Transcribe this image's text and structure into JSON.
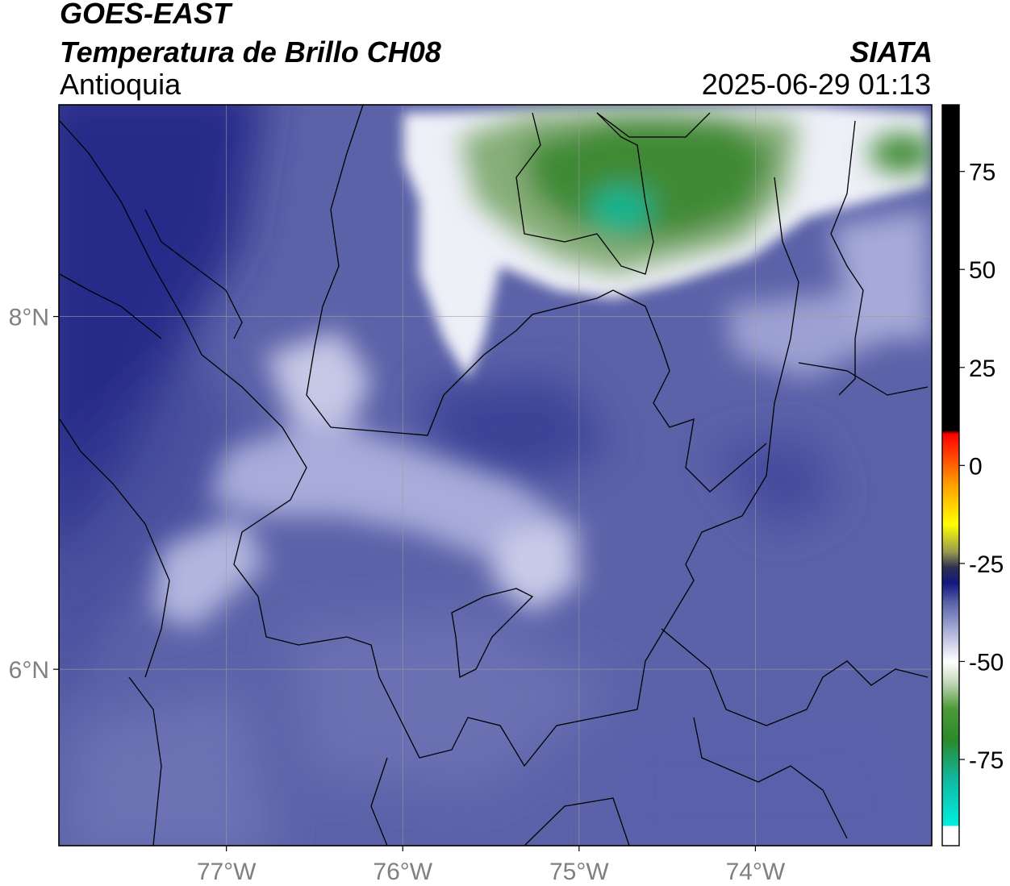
{
  "header": {
    "satellite": "GOES-EAST",
    "product": "Temperatura de Brillo CH08",
    "region": "Antioquia",
    "organization": "SIATA",
    "timestamp": "2025-06-29 01:13"
  },
  "map": {
    "lon_range": [
      -77.95,
      -73.0
    ],
    "lat_range": [
      5.0,
      9.2
    ],
    "lon_ticks": [
      {
        "value": -77,
        "label": "77°W"
      },
      {
        "value": -76,
        "label": "76°W"
      },
      {
        "value": -75,
        "label": "75°W"
      },
      {
        "value": -74,
        "label": "74°W"
      }
    ],
    "lat_ticks": [
      {
        "value": 8,
        "label": "8°N"
      },
      {
        "value": 6,
        "label": "6°N"
      }
    ],
    "grid": true,
    "grid_color": "#9e9e9e",
    "tick_label_color": "#808080"
  },
  "colorbar": {
    "range": [
      -97,
      92
    ],
    "ticks": [
      {
        "value": 75,
        "label": "75"
      },
      {
        "value": 50,
        "label": "50"
      },
      {
        "value": 25,
        "label": "25"
      },
      {
        "value": 0,
        "label": "0"
      },
      {
        "value": -25,
        "label": "-25"
      },
      {
        "value": -50,
        "label": "-50"
      },
      {
        "value": -75,
        "label": "-75"
      }
    ],
    "color_stops": [
      {
        "value": -97,
        "color": "#ffffff"
      },
      {
        "value": -92,
        "color": "#ffffff"
      },
      {
        "value": -92,
        "color": "#00f0e0"
      },
      {
        "value": -80,
        "color": "#10b8a0"
      },
      {
        "value": -70,
        "color": "#2a8a2a"
      },
      {
        "value": -62,
        "color": "#4e9a3a"
      },
      {
        "value": -55,
        "color": "#c8dcc0"
      },
      {
        "value": -50,
        "color": "#ffffff"
      },
      {
        "value": -42,
        "color": "#a8aed6"
      },
      {
        "value": -35,
        "color": "#5a62a8"
      },
      {
        "value": -30,
        "color": "#101880"
      },
      {
        "value": -26,
        "color": "#303050"
      },
      {
        "value": -22,
        "color": "#9a9a50"
      },
      {
        "value": -15,
        "color": "#ffff00"
      },
      {
        "value": -5,
        "color": "#ffa000"
      },
      {
        "value": 8,
        "color": "#ff0000"
      },
      {
        "value": 9,
        "color": "#000000"
      },
      {
        "value": 92,
        "color": "#000000"
      }
    ]
  }
}
